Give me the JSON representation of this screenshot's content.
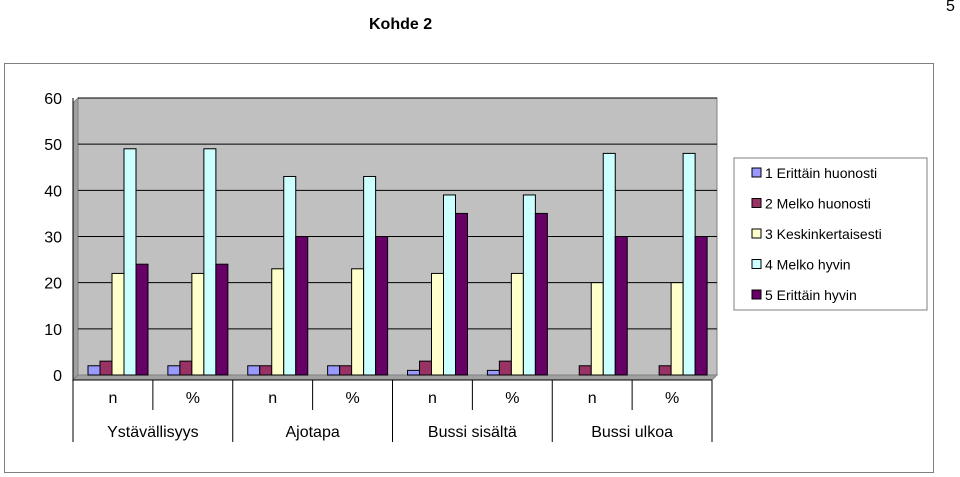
{
  "page": {
    "title": "Kohde 2",
    "page_number": "5"
  },
  "chart_data": {
    "type": "bar",
    "title": "Kohde 2",
    "xlabel": "",
    "ylabel": "",
    "ylim": [
      0,
      60
    ],
    "yticks": [
      0,
      10,
      20,
      30,
      40,
      50,
      60
    ],
    "grid": true,
    "legend_position": "right",
    "categories": [
      "n",
      "%",
      "n",
      "%",
      "n",
      "%",
      "n",
      "%"
    ],
    "groups": [
      "Ystävällisyys",
      "Ajotapa",
      "Bussi sisältä",
      "Bussi ulkoa"
    ],
    "series": [
      {
        "name": "1 Erittäin huonosti",
        "color": "#9999ff",
        "values": [
          2,
          2,
          2,
          2,
          1,
          1,
          0,
          0
        ]
      },
      {
        "name": "2 Melko huonosti",
        "color": "#993366",
        "values": [
          3,
          3,
          2,
          2,
          3,
          3,
          2,
          2
        ]
      },
      {
        "name": "3 Keskinkertaisesti",
        "color": "#ffffcc",
        "values": [
          22,
          22,
          23,
          23,
          22,
          22,
          20,
          20
        ]
      },
      {
        "name": "4 Melko hyvin",
        "color": "#ccffff",
        "values": [
          49,
          49,
          43,
          43,
          39,
          39,
          48,
          48
        ]
      },
      {
        "name": "5 Erittäin hyvin",
        "color": "#660066",
        "values": [
          24,
          24,
          30,
          30,
          35,
          35,
          30,
          30
        ]
      }
    ],
    "plot_background": "#c0c0c0"
  }
}
